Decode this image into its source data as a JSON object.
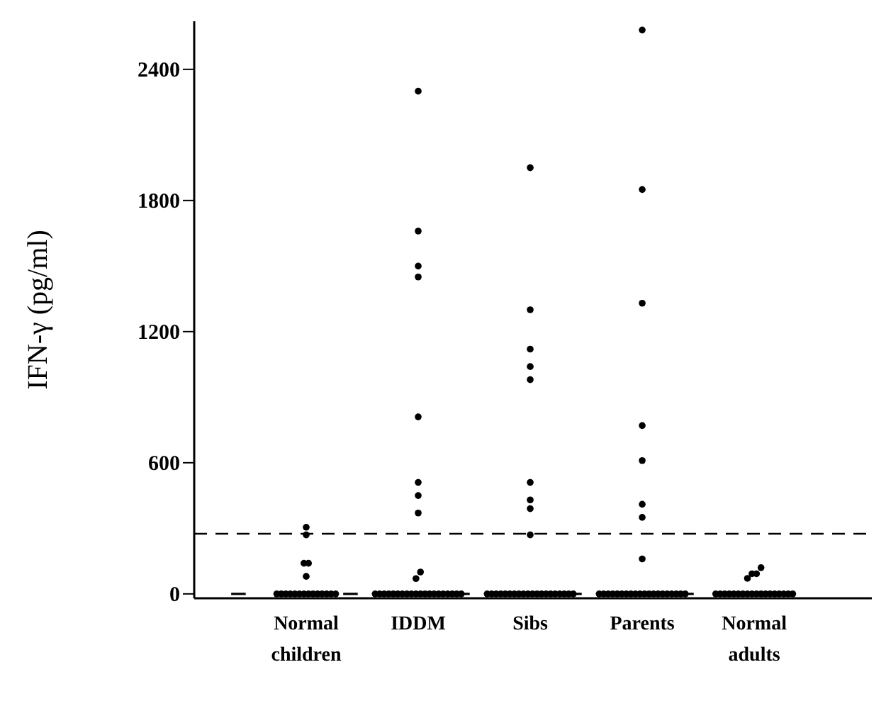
{
  "chart_data": {
    "type": "scatter",
    "ylabel": "IFN-γ (pg/ml)",
    "categories": [
      "Normal children",
      "IDDM",
      "Sibs",
      "Parents",
      "Normal adults"
    ],
    "ylim": [
      -20,
      2620
    ],
    "yticks": [
      0,
      600,
      1200,
      1800,
      2400
    ],
    "grid": false,
    "legend": false,
    "marker": "circle",
    "ref_lines": [
      {
        "axis": "y",
        "value": 275,
        "line_style": "dashed",
        "color": "#000000"
      }
    ],
    "series": [
      {
        "color": "#000000",
        "x": [
          "Normal children",
          "Normal children",
          "Normal children",
          "Normal children",
          "Normal children",
          "Normal children",
          "Normal children",
          "Normal children",
          "Normal children",
          "Normal children",
          "Normal children",
          "Normal children",
          "Normal children",
          "Normal children",
          "Normal children",
          "Normal children",
          "Normal children",
          "Normal children",
          "Normal children",
          "IDDM",
          "IDDM",
          "IDDM",
          "IDDM",
          "IDDM",
          "IDDM",
          "IDDM",
          "IDDM",
          "IDDM",
          "IDDM",
          "IDDM",
          "IDDM",
          "IDDM",
          "IDDM",
          "IDDM",
          "IDDM",
          "IDDM",
          "IDDM",
          "IDDM",
          "IDDM",
          "IDDM",
          "IDDM",
          "IDDM",
          "IDDM",
          "IDDM",
          "IDDM",
          "IDDM",
          "IDDM",
          "IDDM",
          "IDDM",
          "Sibs",
          "Sibs",
          "Sibs",
          "Sibs",
          "Sibs",
          "Sibs",
          "Sibs",
          "Sibs",
          "Sibs",
          "Sibs",
          "Sibs",
          "Sibs",
          "Sibs",
          "Sibs",
          "Sibs",
          "Sibs",
          "Sibs",
          "Sibs",
          "Sibs",
          "Sibs",
          "Sibs",
          "Sibs",
          "Sibs",
          "Sibs",
          "Sibs",
          "Sibs",
          "Sibs",
          "Sibs",
          "Sibs",
          "Parents",
          "Parents",
          "Parents",
          "Parents",
          "Parents",
          "Parents",
          "Parents",
          "Parents",
          "Parents",
          "Parents",
          "Parents",
          "Parents",
          "Parents",
          "Parents",
          "Parents",
          "Parents",
          "Parents",
          "Parents",
          "Parents",
          "Parents",
          "Parents",
          "Parents",
          "Parents",
          "Parents",
          "Parents",
          "Parents",
          "Parents",
          "Parents",
          "Normal adults",
          "Normal adults",
          "Normal adults",
          "Normal adults",
          "Normal adults",
          "Normal adults",
          "Normal adults",
          "Normal adults",
          "Normal adults",
          "Normal adults",
          "Normal adults",
          "Normal adults",
          "Normal adults",
          "Normal adults",
          "Normal adults",
          "Normal adults",
          "Normal adults",
          "Normal adults",
          "Normal adults",
          "Normal adults",
          "Normal adults",
          "Normal adults"
        ],
        "values": [
          305,
          270,
          140,
          140,
          80,
          0,
          0,
          0,
          0,
          0,
          0,
          0,
          0,
          0,
          0,
          0,
          0,
          0,
          0,
          2300,
          1660,
          1500,
          1450,
          810,
          510,
          450,
          370,
          100,
          70,
          0,
          0,
          0,
          0,
          0,
          0,
          0,
          0,
          0,
          0,
          0,
          0,
          0,
          0,
          0,
          0,
          0,
          0,
          0,
          0,
          1950,
          1300,
          1120,
          1040,
          980,
          510,
          430,
          390,
          270,
          0,
          0,
          0,
          0,
          0,
          0,
          0,
          0,
          0,
          0,
          0,
          0,
          0,
          0,
          0,
          0,
          0,
          0,
          0,
          0,
          2580,
          1850,
          1330,
          770,
          610,
          410,
          350,
          160,
          0,
          0,
          0,
          0,
          0,
          0,
          0,
          0,
          0,
          0,
          0,
          0,
          0,
          0,
          0,
          0,
          0,
          0,
          0,
          0,
          120,
          92,
          92,
          71,
          0,
          0,
          0,
          0,
          0,
          0,
          0,
          0,
          0,
          0,
          0,
          0,
          0,
          0,
          0,
          0,
          0,
          0
        ]
      }
    ]
  }
}
